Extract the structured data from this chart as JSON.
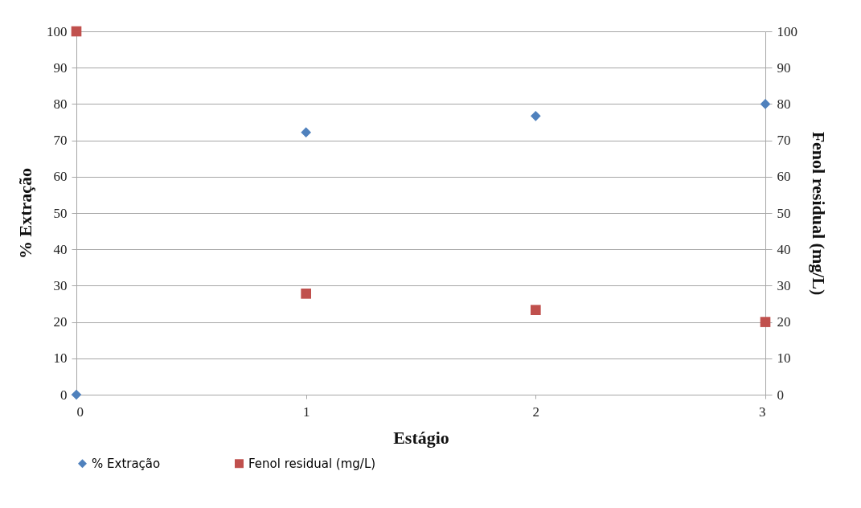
{
  "chart_data": {
    "type": "scatter",
    "xlabel": "Estágio",
    "ylabel": "% Extração",
    "y2label": "Fenol residual (mg/L)",
    "x": [
      0,
      1,
      2,
      3
    ],
    "series": [
      {
        "name": "% Extração",
        "color": "#4f81bd",
        "marker": "diamond",
        "values": [
          0,
          72.2,
          76.7,
          80
        ]
      },
      {
        "name": "Fenol residual (mg/L)",
        "color": "#c0504d",
        "marker": "square",
        "axis": "y2",
        "values": [
          100,
          27.8,
          23.3,
          20
        ]
      }
    ],
    "xlim": [
      0,
      3
    ],
    "xticks": [
      0,
      1,
      2,
      3
    ],
    "ylim": [
      0,
      100
    ],
    "yticks": [
      0,
      10,
      20,
      30,
      40,
      50,
      60,
      70,
      80,
      90,
      100
    ],
    "y2lim": [
      0,
      100
    ],
    "y2ticks": [
      0,
      10,
      20,
      30,
      40,
      50,
      60,
      70,
      80,
      90,
      100
    ],
    "grid": "y",
    "legend": "bottom"
  }
}
